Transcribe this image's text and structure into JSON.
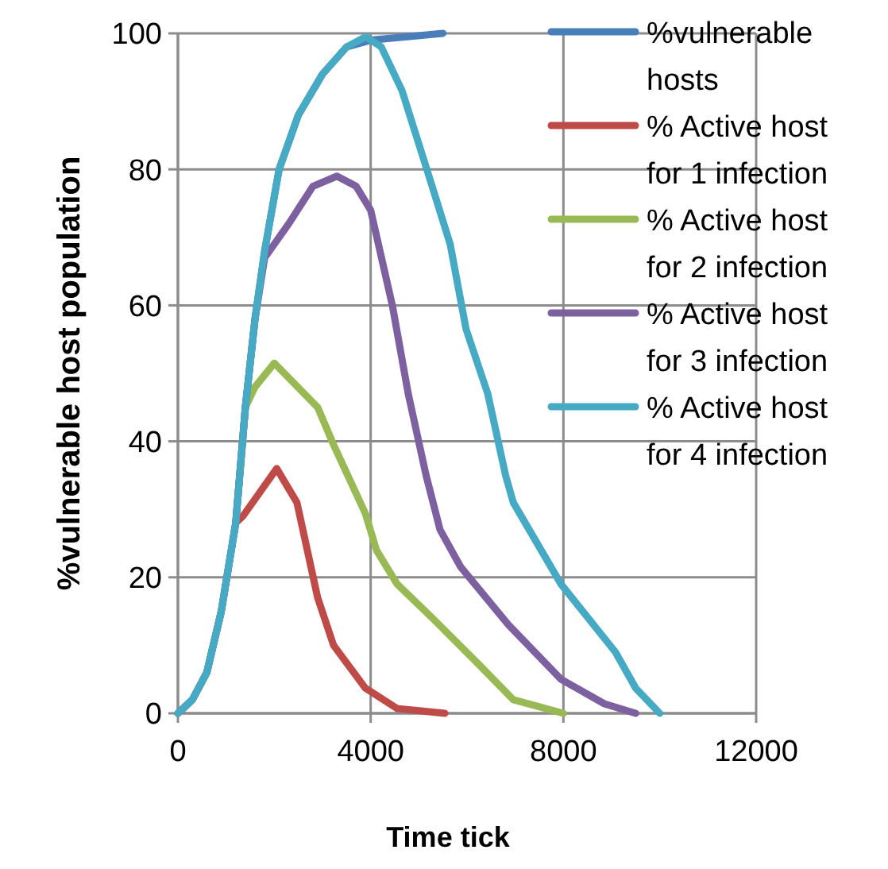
{
  "chart_data": {
    "type": "line",
    "xlabel": "Time tick",
    "ylabel": "%vulnerable host population",
    "xlim": [
      0,
      12000
    ],
    "xticks": [
      0,
      4000,
      8000,
      12000
    ],
    "ylim": [
      0,
      100
    ],
    "yticks": [
      0,
      20,
      40,
      60,
      80,
      100
    ],
    "grid": true,
    "legend": "top right",
    "line_style": "solid",
    "marker": "none",
    "series": [
      {
        "name": "%vulnerable hosts",
        "color": "#4a7ebb",
        "x": [
          0,
          300,
          600,
          900,
          1200,
          1400,
          1600,
          1800,
          2100,
          2500,
          3000,
          3500,
          4000,
          5500
        ],
        "values": [
          0,
          2,
          6,
          15,
          28,
          45,
          58,
          68,
          80,
          88,
          94,
          98,
          99,
          100
        ]
      },
      {
        "name": "% Active host for 1 infection",
        "color": "#be4b48",
        "x": [
          1200,
          1350,
          2050,
          2470,
          2900,
          3230,
          3890,
          4550,
          5540
        ],
        "values": [
          28,
          29,
          36,
          31,
          17,
          10,
          3.7,
          0.7,
          0
        ]
      },
      {
        "name": "% Active host for 2 infection",
        "color": "#98b954",
        "x": [
          1200,
          1400,
          1600,
          2000,
          2900,
          3230,
          3890,
          4120,
          4550,
          5310,
          6200,
          6960,
          8000
        ],
        "values": [
          28,
          45,
          48,
          51.5,
          45,
          39.5,
          29.4,
          24,
          19,
          13.8,
          7.5,
          2,
          0
        ]
      },
      {
        "name": "% Active host for 3 infection",
        "color": "#7d60a0",
        "x": [
          0,
          300,
          600,
          900,
          1200,
          1400,
          1600,
          1800,
          2300,
          2800,
          3300,
          3700,
          4000,
          4450,
          4780,
          5150,
          5440,
          5870,
          6860,
          7950,
          8850,
          9500
        ],
        "values": [
          0,
          2,
          6,
          15,
          28,
          45,
          58,
          67,
          72,
          77.5,
          79,
          77.5,
          74,
          60,
          47,
          35,
          27,
          21.5,
          13,
          5,
          1.4,
          0
        ]
      },
      {
        "name": "% Active host for 4 infection",
        "color": "#46aac5",
        "x": [
          0,
          300,
          600,
          900,
          1200,
          1400,
          1600,
          1800,
          2100,
          2500,
          3000,
          3500,
          3900,
          4220,
          4650,
          5210,
          5650,
          5980,
          6430,
          6800,
          6960,
          7950,
          9080,
          9500,
          10000
        ],
        "values": [
          0,
          2,
          6,
          15,
          28,
          45,
          58,
          68,
          80,
          88,
          94,
          98,
          99.5,
          98,
          91.6,
          79,
          69,
          56.5,
          47,
          35,
          31,
          19,
          9,
          3.7,
          0
        ]
      }
    ]
  }
}
